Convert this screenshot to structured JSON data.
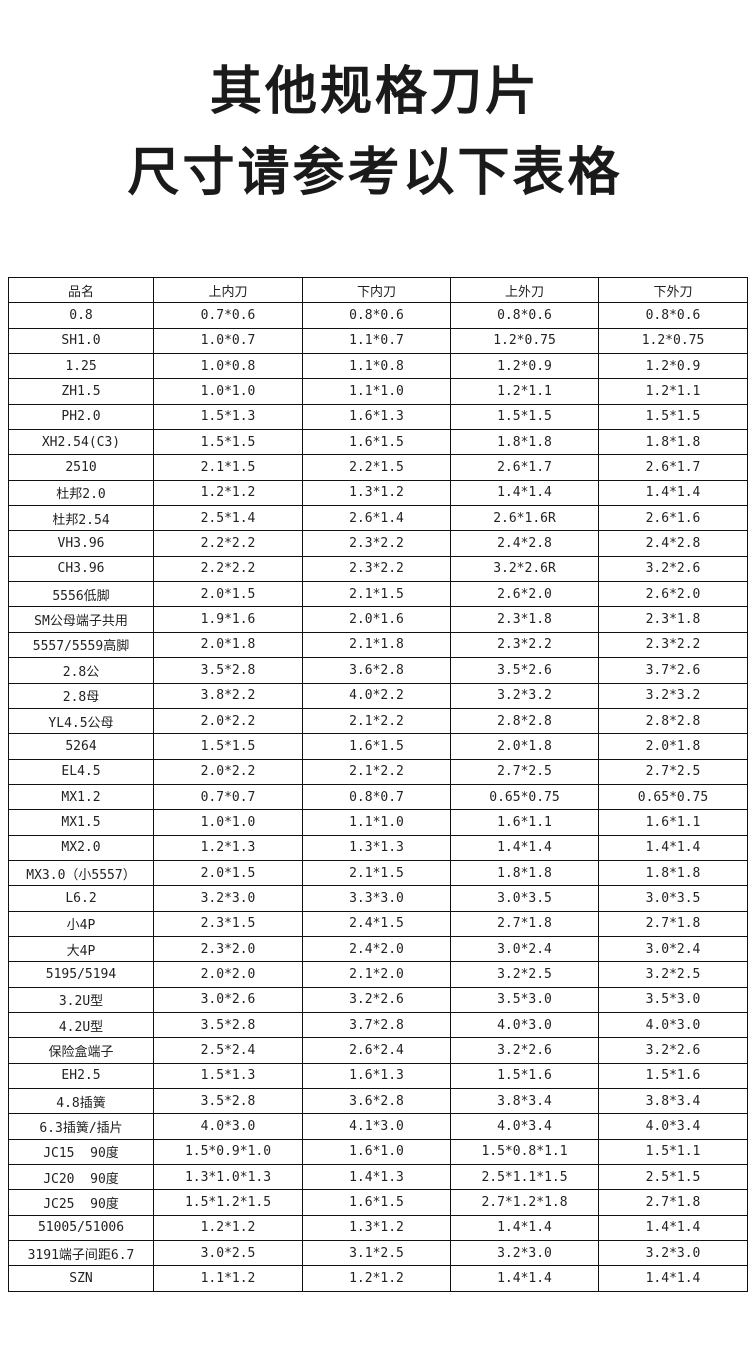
{
  "title": {
    "line1": "其他规格刀片",
    "line2": "尺寸请参考以下表格"
  },
  "table": {
    "headers": [
      "品名",
      "上内刀",
      "下内刀",
      "上外刀",
      "下外刀"
    ],
    "rows": [
      [
        "0.8",
        "0.7*0.6",
        "0.8*0.6",
        "0.8*0.6",
        "0.8*0.6"
      ],
      [
        "SH1.0",
        "1.0*0.7",
        "1.1*0.7",
        "1.2*0.75",
        "1.2*0.75"
      ],
      [
        "1.25",
        "1.0*0.8",
        "1.1*0.8",
        "1.2*0.9",
        "1.2*0.9"
      ],
      [
        "ZH1.5",
        "1.0*1.0",
        "1.1*1.0",
        "1.2*1.1",
        "1.2*1.1"
      ],
      [
        "PH2.0",
        "1.5*1.3",
        "1.6*1.3",
        "1.5*1.5",
        "1.5*1.5"
      ],
      [
        "XH2.54(C3)",
        "1.5*1.5",
        "1.6*1.5",
        "1.8*1.8",
        "1.8*1.8"
      ],
      [
        "2510",
        "2.1*1.5",
        "2.2*1.5",
        "2.6*1.7",
        "2.6*1.7"
      ],
      [
        "杜邦2.0",
        "1.2*1.2",
        "1.3*1.2",
        "1.4*1.4",
        "1.4*1.4"
      ],
      [
        "杜邦2.54",
        "2.5*1.4",
        "2.6*1.4",
        "2.6*1.6R",
        "2.6*1.6"
      ],
      [
        "VH3.96",
        "2.2*2.2",
        "2.3*2.2",
        "2.4*2.8",
        "2.4*2.8"
      ],
      [
        "CH3.96",
        "2.2*2.2",
        "2.3*2.2",
        "3.2*2.6R",
        "3.2*2.6"
      ],
      [
        "5556低脚",
        "2.0*1.5",
        "2.1*1.5",
        "2.6*2.0",
        "2.6*2.0"
      ],
      [
        "SM公母端子共用",
        "1.9*1.6",
        "2.0*1.6",
        "2.3*1.8",
        "2.3*1.8"
      ],
      [
        "5557/5559高脚",
        "2.0*1.8",
        "2.1*1.8",
        "2.3*2.2",
        "2.3*2.2"
      ],
      [
        "2.8公",
        "3.5*2.8",
        "3.6*2.8",
        "3.5*2.6",
        "3.7*2.6"
      ],
      [
        "2.8母",
        "3.8*2.2",
        "4.0*2.2",
        "3.2*3.2",
        "3.2*3.2"
      ],
      [
        "YL4.5公母",
        "2.0*2.2",
        "2.1*2.2",
        "2.8*2.8",
        "2.8*2.8"
      ],
      [
        "5264",
        "1.5*1.5",
        "1.6*1.5",
        "2.0*1.8",
        "2.0*1.8"
      ],
      [
        "EL4.5",
        "2.0*2.2",
        "2.1*2.2",
        "2.7*2.5",
        "2.7*2.5"
      ],
      [
        "MX1.2",
        "0.7*0.7",
        "0.8*0.7",
        "0.65*0.75",
        "0.65*0.75"
      ],
      [
        "MX1.5",
        "1.0*1.0",
        "1.1*1.0",
        "1.6*1.1",
        "1.6*1.1"
      ],
      [
        "MX2.0",
        "1.2*1.3",
        "1.3*1.3",
        "1.4*1.4",
        "1.4*1.4"
      ],
      [
        "MX3.0（小5557）",
        "2.0*1.5",
        "2.1*1.5",
        "1.8*1.8",
        "1.8*1.8"
      ],
      [
        "L6.2",
        "3.2*3.0",
        "3.3*3.0",
        "3.0*3.5",
        "3.0*3.5"
      ],
      [
        "小4P",
        "2.3*1.5",
        "2.4*1.5",
        "2.7*1.8",
        "2.7*1.8"
      ],
      [
        "大4P",
        "2.3*2.0",
        "2.4*2.0",
        "3.0*2.4",
        "3.0*2.4"
      ],
      [
        "5195/5194",
        "2.0*2.0",
        "2.1*2.0",
        "3.2*2.5",
        "3.2*2.5"
      ],
      [
        "3.2U型",
        "3.0*2.6",
        "3.2*2.6",
        "3.5*3.0",
        "3.5*3.0"
      ],
      [
        "4.2U型",
        "3.5*2.8",
        "3.7*2.8",
        "4.0*3.0",
        "4.0*3.0"
      ],
      [
        "保险盒端子",
        "2.5*2.4",
        "2.6*2.4",
        "3.2*2.6",
        "3.2*2.6"
      ],
      [
        "EH2.5",
        "1.5*1.3",
        "1.6*1.3",
        "1.5*1.6",
        "1.5*1.6"
      ],
      [
        "4.8插簧",
        "3.5*2.8",
        "3.6*2.8",
        "3.8*3.4",
        "3.8*3.4"
      ],
      [
        "6.3插簧/插片",
        "4.0*3.0",
        "4.1*3.0",
        "4.0*3.4",
        "4.0*3.4"
      ],
      [
        "JC15  90度",
        "1.5*0.9*1.0",
        "1.6*1.0",
        "1.5*0.8*1.1",
        "1.5*1.1"
      ],
      [
        "JC20  90度",
        "1.3*1.0*1.3",
        "1.4*1.3",
        "2.5*1.1*1.5",
        "2.5*1.5"
      ],
      [
        "JC25  90度",
        "1.5*1.2*1.5",
        "1.6*1.5",
        "2.7*1.2*1.8",
        "2.7*1.8"
      ],
      [
        "51005/51006",
        "1.2*1.2",
        "1.3*1.2",
        "1.4*1.4",
        "1.4*1.4"
      ],
      [
        "3191端子间距6.7",
        "3.0*2.5",
        "3.1*2.5",
        "3.2*3.0",
        "3.2*3.0"
      ],
      [
        "SZN",
        "1.1*1.2",
        "1.2*1.2",
        "1.4*1.4",
        "1.4*1.4"
      ]
    ]
  }
}
